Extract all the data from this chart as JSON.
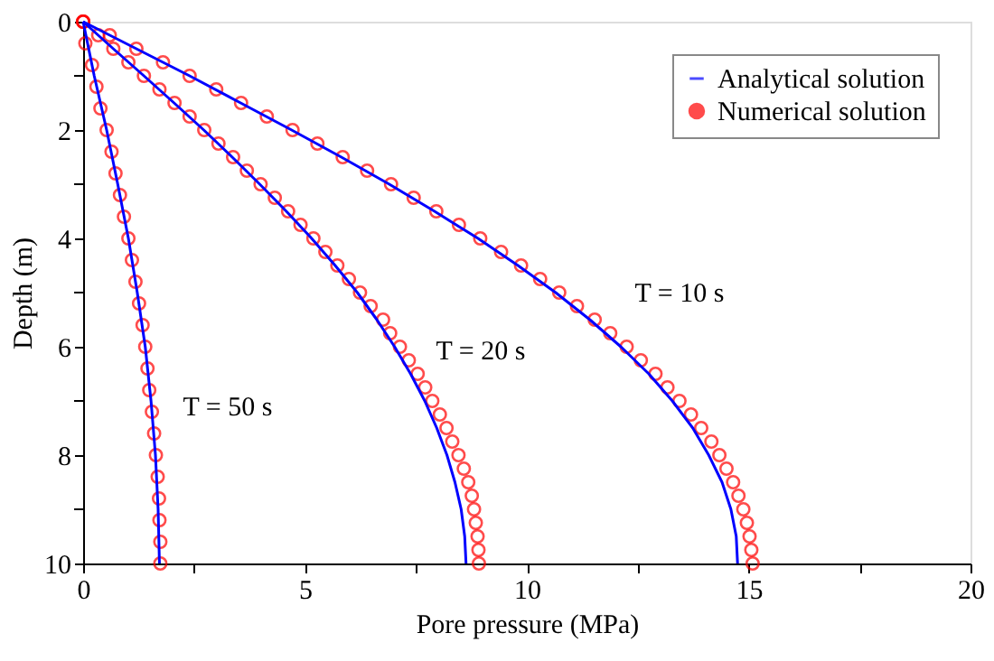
{
  "chart_data": {
    "type": "line",
    "xlabel": "Pore pressure (MPa)",
    "ylabel": "Depth (m)",
    "xlim": [
      0,
      20
    ],
    "xticks": [
      0,
      {
        "value": 2.5,
        "label": null
      },
      5,
      {
        "value": 7.5,
        "label": null
      },
      10,
      {
        "value": 12.5,
        "label": null
      },
      15,
      {
        "value": 17.5,
        "label": null
      },
      20
    ],
    "ylim": [
      10,
      0
    ],
    "yticks": [
      0,
      {
        "value": 1,
        "label": null
      },
      2,
      {
        "value": 3,
        "label": null
      },
      4,
      {
        "value": 5,
        "label": null
      },
      6,
      {
        "value": 7,
        "label": null
      },
      8,
      {
        "value": 9,
        "label": null
      },
      10
    ],
    "grid": false,
    "legend": "top right",
    "series": [
      {
        "name": "Analytical solution",
        "color": "#0000ff",
        "line_style": "solid",
        "marker": "none",
        "x": [
          0,
          1.2,
          2.4,
          3.55,
          4.7,
          5.82,
          6.9,
          7.92,
          8.9,
          9.8,
          10.65,
          11.42,
          12.12,
          12.75,
          13.28,
          13.74,
          14.1,
          14.4,
          14.6,
          14.72,
          14.75
        ],
        "values": [
          0,
          0.5,
          1,
          1.5,
          2,
          2.5,
          3,
          3.5,
          4,
          4.5,
          5,
          5.5,
          6,
          6.5,
          7,
          7.5,
          8,
          8.5,
          9,
          9.5,
          10
        ]
      },
      {
        "color": "#0000ff",
        "line_style": "solid",
        "marker": "none",
        "x": [
          0,
          0.68,
          1.37,
          2.05,
          2.72,
          3.36,
          3.98,
          4.58,
          5.15,
          5.68,
          6.18,
          6.62,
          7.02,
          7.38,
          7.7,
          7.97,
          8.2,
          8.38,
          8.52,
          8.6,
          8.63
        ],
        "values": [
          0,
          0.5,
          1,
          1.5,
          2,
          2.5,
          3,
          3.5,
          4,
          4.5,
          5,
          5.5,
          6,
          6.5,
          7,
          7.5,
          8,
          8.5,
          9,
          9.5,
          10
        ]
      },
      {
        "color": "#0000ff",
        "line_style": "solid",
        "marker": "none",
        "x": [
          0,
          0.25,
          0.53,
          0.78,
          1.02,
          1.22,
          1.4,
          1.53,
          1.63,
          1.69,
          1.72
        ],
        "values": [
          0,
          1,
          2,
          3,
          4,
          5,
          6,
          7,
          8,
          9,
          10
        ]
      },
      {
        "name": "Numerical solution",
        "type": "scatter",
        "color": "#ff0000",
        "marker": "circle",
        "x": [
          0,
          0.6,
          1.2,
          1.8,
          2.4,
          3.0,
          3.56,
          4.14,
          4.72,
          5.28,
          5.85,
          6.4,
          6.94,
          7.45,
          7.96,
          8.47,
          8.95,
          9.42,
          9.87,
          10.3,
          10.73,
          11.13,
          11.53,
          11.88,
          12.25,
          12.57,
          12.9,
          13.17,
          13.44,
          13.7,
          13.93,
          14.16,
          14.34,
          14.5,
          14.65,
          14.77,
          14.88,
          14.96,
          15.02,
          15.06,
          15.09
        ],
        "values": [
          0,
          0.25,
          0.5,
          0.75,
          1,
          1.25,
          1.5,
          1.75,
          2,
          2.25,
          2.5,
          2.75,
          3,
          3.25,
          3.5,
          3.75,
          4,
          4.25,
          4.5,
          4.75,
          5,
          5.25,
          5.5,
          5.75,
          6,
          6.25,
          6.5,
          6.75,
          7,
          7.25,
          7.5,
          7.75,
          8,
          8.25,
          8.5,
          8.75,
          9,
          9.25,
          9.5,
          9.75,
          10
        ]
      },
      {
        "type": "scatter",
        "color": "#ff0000",
        "marker": "circle",
        "x": [
          0,
          0.34,
          0.68,
          1.02,
          1.37,
          1.72,
          2.06,
          2.4,
          2.73,
          3.05,
          3.38,
          3.69,
          4.0,
          4.32,
          4.62,
          4.9,
          5.19,
          5.46,
          5.73,
          5.99,
          6.24,
          6.48,
          6.76,
          6.92,
          7.14,
          7.34,
          7.54,
          7.71,
          7.87,
          8.04,
          8.19,
          8.32,
          8.46,
          8.58,
          8.68,
          8.76,
          8.81,
          8.85,
          8.89,
          8.91,
          8.92
        ],
        "values": [
          0,
          0.25,
          0.5,
          0.75,
          1,
          1.25,
          1.5,
          1.75,
          2,
          2.25,
          2.5,
          2.75,
          3,
          3.25,
          3.5,
          3.75,
          4,
          4.25,
          4.5,
          4.75,
          5,
          5.25,
          5.5,
          5.75,
          6,
          6.25,
          6.5,
          6.75,
          7,
          7.25,
          7.5,
          7.75,
          8,
          8.25,
          8.5,
          8.75,
          9,
          9.25,
          9.5,
          9.75,
          10
        ]
      },
      {
        "type": "scatter",
        "color": "#ff0000",
        "marker": "circle",
        "x": [
          0,
          0.05,
          0.2,
          0.3,
          0.39,
          0.53,
          0.64,
          0.73,
          0.83,
          0.92,
          1.02,
          1.1,
          1.18,
          1.26,
          1.34,
          1.4,
          1.45,
          1.49,
          1.55,
          1.6,
          1.64,
          1.68,
          1.71,
          1.72,
          1.74,
          1.74
        ],
        "values": [
          0,
          0.4,
          0.8,
          1.2,
          1.6,
          2,
          2.4,
          2.8,
          3.2,
          3.6,
          4,
          4.4,
          4.8,
          5.2,
          5.6,
          6,
          6.4,
          6.8,
          7.2,
          7.6,
          8,
          8.4,
          8.8,
          9.2,
          9.6,
          10
        ]
      }
    ],
    "annotations": [
      "T = 10 s",
      "T = 20 s",
      "T = 50 s"
    ]
  }
}
